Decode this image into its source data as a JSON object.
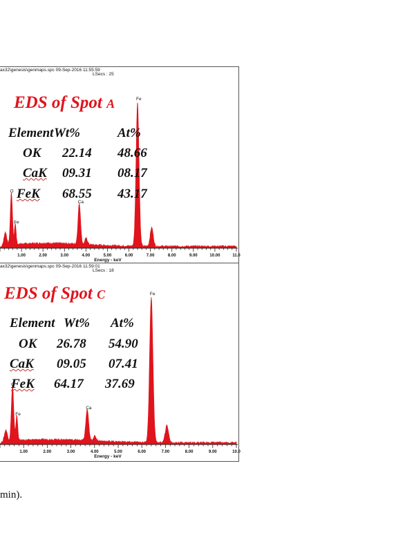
{
  "chart_data": [
    {
      "type": "line",
      "header_path": "ax32\\genesis\\genmaps.spc  09-Sep-2016 11:55:59",
      "header_lsecs": "LSecs : 25",
      "title_main": "EDS of Spot ",
      "title_spot": "A",
      "xlabel": "Energy - keV",
      "xlim": [
        0.0,
        11.0
      ],
      "x_ticks": [
        "1.00",
        "2.00",
        "3.00",
        "4.00",
        "5.00",
        "6.00",
        "7.00",
        "8.00",
        "9.00",
        "10.00",
        "11.0"
      ],
      "x_tick_values": [
        1,
        2,
        3,
        4,
        5,
        6,
        7,
        8,
        9,
        10,
        11
      ],
      "ylim": [
        0,
        100
      ],
      "grid": false,
      "peaks": [
        {
          "x": 0.53,
          "y": 33,
          "w": 0.05
        },
        {
          "x": 0.71,
          "y": 13,
          "w": 0.04
        },
        {
          "x": 0.25,
          "y": 8,
          "w": 0.06
        },
        {
          "x": 3.69,
          "y": 26,
          "w": 0.06
        },
        {
          "x": 4.01,
          "y": 4,
          "w": 0.06
        },
        {
          "x": 6.4,
          "y": 92,
          "w": 0.07
        },
        {
          "x": 7.06,
          "y": 12,
          "w": 0.07
        }
      ],
      "background_level": 2,
      "peak_labels": [
        {
          "label": "O",
          "x": 0.53,
          "y": 33
        },
        {
          "label": "Fe",
          "x": 0.71,
          "y": 13
        },
        {
          "label": "Ca",
          "x": 3.69,
          "y": 26
        },
        {
          "label": "Fe",
          "x": 6.4,
          "y": 92
        }
      ],
      "table": {
        "headers": [
          "Element",
          "Wt%",
          "At%"
        ],
        "rows": [
          [
            "OK",
            "22.14",
            "48.66"
          ],
          [
            "CaK",
            "09.31",
            "08.17"
          ],
          [
            "FeK",
            "68.55",
            "43.17"
          ]
        ]
      }
    },
    {
      "type": "line",
      "header_path": "ax32\\genesis\\genmaps.spc  09-Sep-2016 11:59:01",
      "header_lsecs": "LSecs : 18",
      "title_main": "EDS of Spot ",
      "title_spot": "C",
      "xlabel": "Energy - keV",
      "xlim": [
        0.0,
        10.0
      ],
      "x_ticks": [
        "1.00",
        "2.00",
        "3.00",
        "4.00",
        "5.00",
        "6.00",
        "7.00",
        "8.00",
        "9.00",
        "10.0"
      ],
      "x_tick_values": [
        1,
        2,
        3,
        4,
        5,
        6,
        7,
        8,
        9,
        10
      ],
      "ylim": [
        0,
        100
      ],
      "grid": false,
      "peaks": [
        {
          "x": 0.53,
          "y": 35,
          "w": 0.05
        },
        {
          "x": 0.71,
          "y": 16,
          "w": 0.04
        },
        {
          "x": 0.25,
          "y": 7,
          "w": 0.06
        },
        {
          "x": 3.69,
          "y": 20,
          "w": 0.06
        },
        {
          "x": 4.01,
          "y": 3,
          "w": 0.06
        },
        {
          "x": 6.4,
          "y": 93,
          "w": 0.07
        },
        {
          "x": 7.06,
          "y": 11,
          "w": 0.07
        }
      ],
      "background_level": 2,
      "peak_labels": [
        {
          "label": "O",
          "x": 0.53,
          "y": 35
        },
        {
          "label": "Fe",
          "x": 0.71,
          "y": 16
        },
        {
          "label": "Ca",
          "x": 3.69,
          "y": 20
        },
        {
          "label": "Fe",
          "x": 6.4,
          "y": 93
        }
      ],
      "table": {
        "headers": [
          "Element",
          "Wt%",
          "At%"
        ],
        "rows": [
          [
            "OK",
            "26.78",
            "54.90"
          ],
          [
            "CaK",
            "09.05",
            "07.41"
          ],
          [
            "FeK",
            "64.17",
            "37.69"
          ]
        ]
      }
    }
  ],
  "caption": "min).",
  "colors": {
    "spectrum": "#e0141c",
    "axis": "#222222",
    "text": "#111111"
  }
}
